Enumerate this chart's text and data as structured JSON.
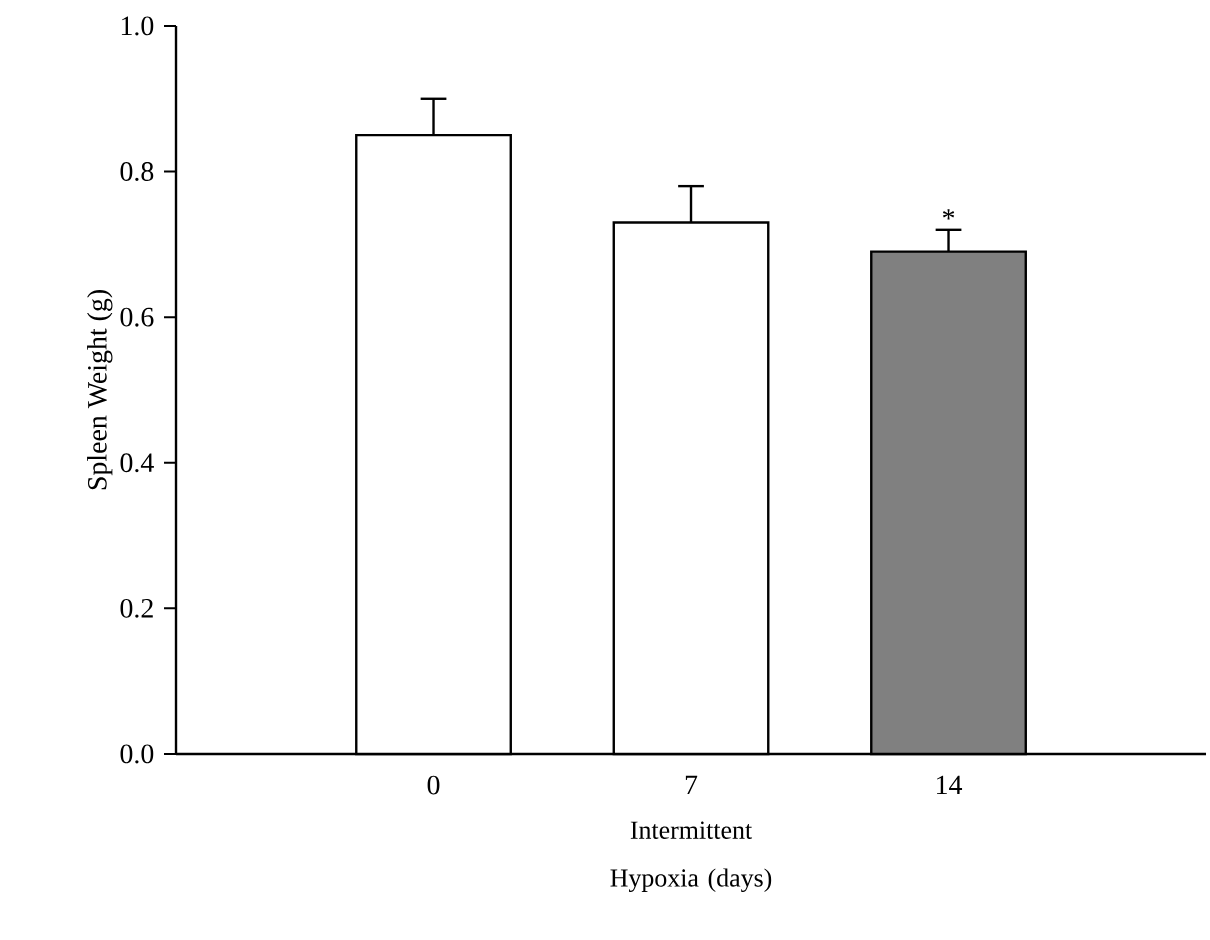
{
  "chart_data": {
    "type": "bar",
    "xlabel": "Intermittent Hypoxia (days)",
    "ylabel": "Spleen Weight (g)",
    "categories": [
      "0",
      "7",
      "14"
    ],
    "values": [
      0.85,
      0.73,
      0.69
    ],
    "errors": [
      [
        0.85,
        0.9
      ],
      [
        0.73,
        0.78
      ],
      [
        0.69,
        0.72
      ]
    ],
    "colors": [
      "#ffffff",
      "#ffffff",
      "#808080"
    ],
    "annotations": [
      {
        "text": "*",
        "x": "14",
        "y": 0.72
      }
    ],
    "ylim": [
      0,
      1.0
    ],
    "yticks": [
      {
        "value": 0,
        "label": "0.0"
      },
      0.2,
      0.4,
      0.6,
      0.8,
      {
        "value": 1.0,
        "label": "1.0"
      }
    ],
    "grid": false
  }
}
